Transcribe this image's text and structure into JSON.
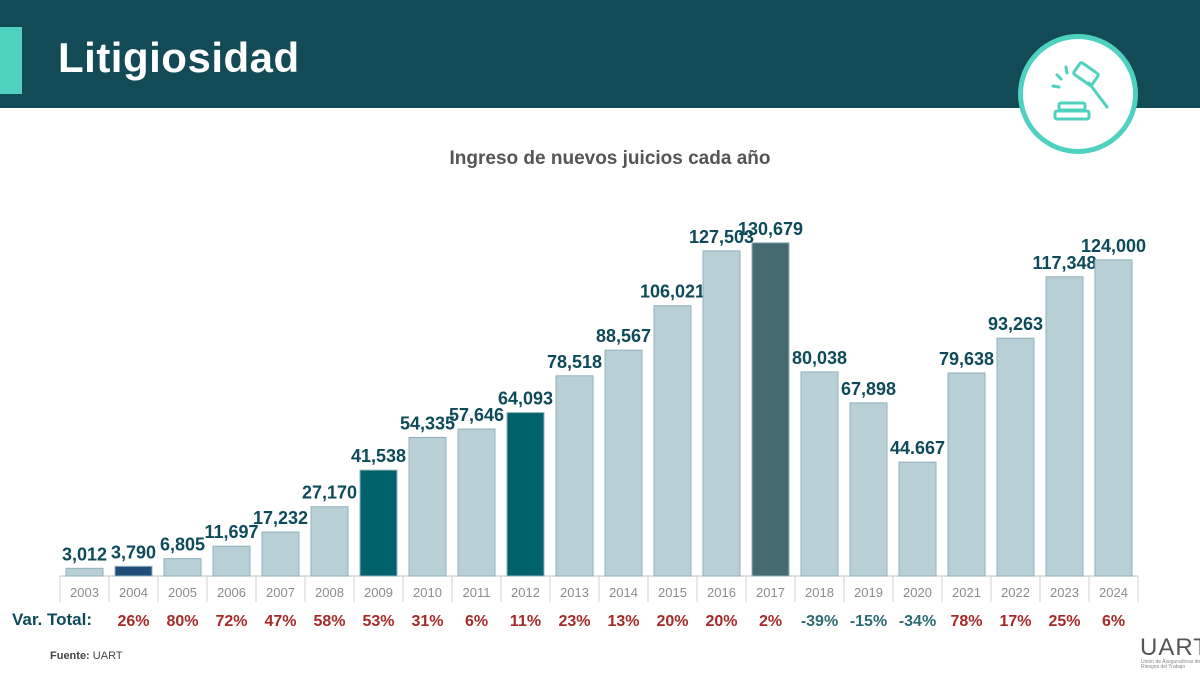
{
  "header": {
    "title": "Litigiosidad",
    "icon": "gavel-icon"
  },
  "chart_data": {
    "type": "bar",
    "title": "Ingreso de nuevos juicios cada año",
    "categories": [
      "2003",
      "2004",
      "2005",
      "2006",
      "2007",
      "2008",
      "2009",
      "2010",
      "2011",
      "2012",
      "2013",
      "2014",
      "2015",
      "2016",
      "2017",
      "2018",
      "2019",
      "2020",
      "2021",
      "2022",
      "2023",
      "2024"
    ],
    "values": [
      3012,
      3790,
      6805,
      11697,
      17232,
      27170,
      41538,
      54335,
      57646,
      64093,
      78518,
      88567,
      106021,
      127503,
      130679,
      80038,
      67898,
      44667,
      79638,
      93263,
      117348,
      124000
    ],
    "value_labels": [
      "3,012",
      "3,790",
      "6,805",
      "11,697",
      "17,232",
      "27,170",
      "41,538",
      "54,335",
      "57,646",
      "64,093",
      "78,518",
      "88,567",
      "106,021",
      "127,503",
      "130,679",
      "80,038",
      "67,898",
      "44.667",
      "79,638",
      "93,263",
      "117,348",
      "124,000"
    ],
    "bar_colors": [
      "#b8cfd6",
      "#1f4e79",
      "#b8cfd6",
      "#b8cfd6",
      "#b8cfd6",
      "#b8cfd6",
      "#00636b",
      "#b8cfd6",
      "#b8cfd6",
      "#00636b",
      "#b8cfd6",
      "#b8cfd6",
      "#b8cfd6",
      "#b8cfd6",
      "#446a70",
      "#b8cfd6",
      "#b8cfd6",
      "#b8cfd6",
      "#b8cfd6",
      "#b8cfd6",
      "#b8cfd6",
      "#b8cfd6"
    ],
    "variation_label": "Var. Total:",
    "variations": [
      "",
      "26%",
      "80%",
      "72%",
      "47%",
      "58%",
      "53%",
      "31%",
      "6%",
      "11%",
      "23%",
      "13%",
      "20%",
      "20%",
      "2%",
      "-39%",
      "-15%",
      "-34%",
      "78%",
      "17%",
      "25%",
      "6%"
    ],
    "ylim": [
      0,
      140000
    ],
    "grid": false,
    "colors": {
      "positive": "#a52a2a",
      "negative": "#2d6b73",
      "value_label": "#0e4a5a",
      "bar_edge": "#8fb0bc"
    }
  },
  "footer": {
    "source_label": "Fuente:",
    "source_value": " UART",
    "brand": "UART",
    "brand_sub": "Unión de Aseguradoras de Riesgos del Trabajo"
  }
}
